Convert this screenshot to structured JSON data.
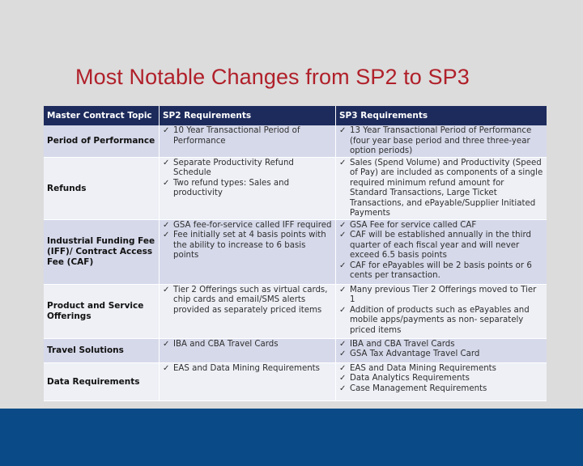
{
  "slide": {
    "title": "Most Notable Changes from SP2 to SP3",
    "colors": {
      "title": "#b0202a",
      "header": "#1d2b5c",
      "row_alt": "#d6d9ea",
      "row_plain": "#eef0f6",
      "footer": "#0a4a87"
    }
  },
  "table": {
    "headers": [
      "Master Contract Topic",
      "SP2 Requirements",
      "SP3 Requirements"
    ],
    "check_icon": "checkmark-icon",
    "rows": [
      {
        "topic": "Period of Performance",
        "sp2": [
          "10 Year Transactional Period of Performance"
        ],
        "sp3": [
          "13 Year Transactional Period of Performance (four year base period and three three-year option periods)"
        ]
      },
      {
        "topic": "Refunds",
        "sp2": [
          "Separate Productivity Refund Schedule",
          "Two refund types: Sales and productivity"
        ],
        "sp3": [
          "Sales (Spend Volume) and Productivity (Speed of Pay) are included as components of a single required minimum refund amount for Standard Transactions, Large Ticket Transactions, and ePayable/Supplier Initiated Payments"
        ]
      },
      {
        "topic": "Industrial Funding Fee (IFF)/ Contract Access Fee (CAF)",
        "sp2": [
          "GSA fee-for-service called IFF required",
          "Fee initially set at 4 basis points with the ability to increase to 6 basis points"
        ],
        "sp3": [
          "GSA Fee for service called CAF",
          "CAF will be established annually in the third quarter of each fiscal year and will never exceed 6.5 basis points",
          "CAF for ePayables will be 2 basis points or 6 cents per transaction."
        ]
      },
      {
        "topic": "Product and Service Offerings",
        "sp2": [
          "Tier 2 Offerings such as virtual cards, chip cards and email/SMS alerts provided as separately priced items"
        ],
        "sp3": [
          "Many previous Tier 2 Offerings moved to Tier 1",
          "Addition of products such as ePayables and mobile apps/payments as non- separately priced items"
        ]
      },
      {
        "topic": "Travel Solutions",
        "sp2": [
          "IBA and CBA Travel Cards"
        ],
        "sp3": [
          "IBA and CBA Travel Cards",
          "GSA Tax Advantage Travel Card"
        ]
      },
      {
        "topic": "Data Requirements",
        "sp2": [
          "EAS and Data Mining Requirements"
        ],
        "sp3": [
          "EAS and Data Mining Requirements",
          "Data Analytics Requirements",
          "Case Management Requirements"
        ]
      }
    ]
  }
}
